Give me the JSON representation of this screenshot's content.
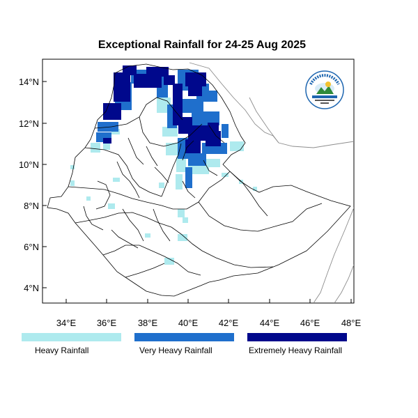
{
  "title": "Exceptional Rainfall for 24-25 Aug 2025",
  "map": {
    "lon_range": [
      32.8,
      48.2
    ],
    "lat_range": [
      3.2,
      15.0
    ],
    "lat_ticks": [
      "4°N",
      "6°N",
      "8°N",
      "10°N",
      "12°N",
      "14°N"
    ],
    "lon_ticks": [
      "34°E",
      "36°E",
      "38°E",
      "40°E",
      "42°E",
      "44°E",
      "46°E",
      "48°E"
    ]
  },
  "legend": {
    "heavy": {
      "label": "Heavy Rainfall",
      "color": "#aeeaee"
    },
    "very_heavy": {
      "label": "Very Heavy Rainfall",
      "color": "#1f6fcc"
    },
    "extreme": {
      "label": "Extremely Heavy Rainfall",
      "color": "#00088c"
    }
  },
  "logo_text": "ETHIOPIAN METEOROLOGY INSTITUTE"
}
